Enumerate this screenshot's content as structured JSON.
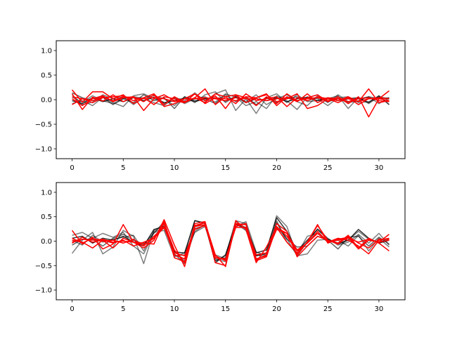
{
  "chart_data": [
    {
      "type": "line",
      "title": "",
      "xlabel": "",
      "ylabel": "",
      "xlim": [
        -1.55,
        32.55
      ],
      "ylim": [
        -1.2,
        1.2
      ],
      "x_ticks": [
        0,
        5,
        10,
        15,
        20,
        25,
        30
      ],
      "x_tick_labels": [
        "0",
        "5",
        "10",
        "15",
        "20",
        "25",
        "30"
      ],
      "y_ticks": [
        -1.0,
        -0.5,
        0.0,
        0.5,
        1.0
      ],
      "y_tick_labels": [
        "−1.0",
        "−0.5",
        "0.0",
        "0.5",
        "1.0"
      ],
      "grid": false,
      "legend": "none",
      "x": [
        0,
        1,
        2,
        3,
        4,
        5,
        6,
        7,
        8,
        9,
        10,
        11,
        12,
        13,
        14,
        15,
        16,
        17,
        18,
        19,
        20,
        21,
        22,
        23,
        24,
        25,
        26,
        27,
        28,
        29,
        30,
        31
      ],
      "series": [
        {
          "color": "#000000",
          "alpha": 0.5,
          "values": [
            -0.08,
            -0.02,
            -0.12,
            0.05,
            -0.06,
            -0.14,
            0.08,
            0.12,
            0.02,
            -0.08,
            0.05,
            -0.02,
            0.14,
            -0.03,
            0.12,
            0.2,
            -0.22,
            0.02,
            -0.28,
            0.04,
            0.12,
            -0.06,
            0.1,
            -0.04,
            -0.02,
            0.02,
            0.08,
            -0.18,
            0.05,
            -0.08,
            0.06,
            0.02
          ]
        },
        {
          "color": "#000000",
          "alpha": 0.5,
          "values": [
            0.05,
            -0.05,
            0.08,
            -0.02,
            -0.08,
            0.02,
            0.06,
            0.03,
            -0.06,
            -0.12,
            0.04,
            -0.08,
            0.02,
            0.06,
            -0.05,
            0.12,
            0.05,
            -0.12,
            -0.04,
            -0.18,
            0.08,
            -0.02,
            -0.2,
            0.06,
            0.02,
            -0.12,
            0.04,
            0.06,
            -0.06,
            -0.04,
            0.05,
            0.01
          ]
        },
        {
          "color": "#000000",
          "alpha": 0.5,
          "values": [
            0.1,
            -0.1,
            -0.05,
            0.1,
            0.02,
            0.06,
            -0.1,
            0.04,
            0.08,
            0.02,
            -0.12,
            0.06,
            -0.06,
            0.1,
            0.16,
            -0.06,
            0.08,
            -0.04,
            0.1,
            -0.1,
            0.02,
            0.1,
            -0.04,
            -0.12,
            0.08,
            -0.06,
            0.1,
            -0.04,
            0.02,
            0.06,
            -0.08,
            0.04
          ]
        },
        {
          "color": "#000000",
          "alpha": 0.8,
          "values": [
            -0.02,
            -0.08,
            0.04,
            -0.04,
            0.02,
            -0.04,
            0.04,
            -0.02,
            0.05,
            -0.06,
            -0.02,
            0.03,
            -0.04,
            0.02,
            0.04,
            -0.03,
            0.06,
            -0.06,
            0.02,
            -0.02,
            0.04,
            -0.04,
            0.02,
            0.05,
            -0.02,
            0.04,
            -0.02,
            0.02,
            0.04,
            -0.06,
            0.08,
            -0.1
          ]
        },
        {
          "color": "#000000",
          "alpha": 0.6,
          "values": [
            0.14,
            0.04,
            -0.02,
            0.05,
            -0.1,
            0.02,
            -0.06,
            0.1,
            -0.02,
            0.04,
            -0.18,
            0.06,
            -0.02,
            0.02,
            -0.08,
            0.1,
            -0.04,
            0.06,
            -0.1,
            0.04,
            -0.06,
            0.02,
            0.06,
            -0.02,
            0.04,
            -0.04,
            0.02,
            -0.06,
            -0.02,
            0.06,
            0.02,
            0.04
          ]
        },
        {
          "color": "#ff0000",
          "alpha": 1.0,
          "values": [
            0.2,
            -0.05,
            0.16,
            0.16,
            0.02,
            0.1,
            -0.08,
            0.04,
            0.12,
            -0.1,
            0.06,
            -0.06,
            0.12,
            -0.02,
            0.08,
            -0.18,
            0.1,
            0.04,
            -0.12,
            0.06,
            -0.08,
            0.12,
            -0.02,
            0.04,
            0.1,
            -0.04,
            0.06,
            -0.08,
            0.06,
            -0.35,
            0.02,
            0.18
          ]
        },
        {
          "color": "#ff0000",
          "alpha": 1.0,
          "values": [
            0.12,
            -0.2,
            0.05,
            -0.03,
            0.1,
            -0.04,
            0.06,
            -0.22,
            0.02,
            0.1,
            -0.02,
            -0.06,
            0.04,
            0.22,
            -0.1,
            0.06,
            0.1,
            -0.06,
            0.04,
            0.1,
            -0.04,
            0.02,
            0.12,
            -0.18,
            -0.12,
            0.02,
            -0.02,
            0.06,
            -0.04,
            0.22,
            -0.06,
            -0.02
          ]
        },
        {
          "color": "#ff0000",
          "alpha": 1.0,
          "values": [
            0.02,
            -0.12,
            0.02,
            0.08,
            -0.04,
            0.04,
            0.06,
            -0.04,
            0.1,
            -0.14,
            -0.08,
            0.02,
            0.12,
            -0.08,
            0.04,
            0.02,
            -0.02,
            0.06,
            0.04,
            0.12,
            -0.12,
            0.06,
            -0.04,
            0.12,
            -0.06,
            0.04,
            0.02,
            -0.04,
            0.02,
            0.04,
            -0.02,
            -0.04
          ]
        },
        {
          "color": "#ff0000",
          "alpha": 1.0,
          "values": [
            -0.1,
            0.02,
            -0.06,
            0.04,
            0.06,
            0.08,
            -0.02,
            0.04,
            -0.1,
            0.06,
            0.02,
            -0.04,
            0.04,
            -0.06,
            0.12,
            0.06,
            -0.08,
            0.12,
            -0.02,
            0.02,
            0.06,
            -0.14,
            0.04,
            -0.02,
            0.06,
            0.02,
            -0.06,
            0.04,
            -0.1,
            0.02,
            0.04,
            0.02
          ]
        },
        {
          "color": "#ff0000",
          "alpha": 1.0,
          "values": [
            0.06,
            0.02,
            -0.02,
            0.06,
            -0.02,
            0.06,
            0.04,
            0.02,
            0.04,
            0.02,
            -0.04,
            0.02,
            0.02,
            0.04,
            0.02,
            -0.02,
            0.04,
            0.02,
            0.02,
            -0.02,
            0.02,
            0.04,
            -0.02,
            0.02,
            0.04,
            -0.02,
            0.02,
            0.02,
            -0.04,
            0.02,
            0.02,
            -0.02
          ]
        }
      ]
    },
    {
      "type": "line",
      "title": "",
      "xlabel": "",
      "ylabel": "",
      "xlim": [
        -1.55,
        32.55
      ],
      "ylim": [
        -1.2,
        1.2
      ],
      "x_ticks": [
        0,
        5,
        10,
        15,
        20,
        25,
        30
      ],
      "x_tick_labels": [
        "0",
        "5",
        "10",
        "15",
        "20",
        "25",
        "30"
      ],
      "y_ticks": [
        -1.0,
        -0.5,
        0.0,
        0.5,
        1.0
      ],
      "y_tick_labels": [
        "−1.0",
        "−0.5",
        "0.0",
        "0.5",
        "1.0"
      ],
      "grid": false,
      "legend": "none",
      "x": [
        0,
        1,
        2,
        3,
        4,
        5,
        6,
        7,
        8,
        9,
        10,
        11,
        12,
        13,
        14,
        15,
        16,
        17,
        18,
        19,
        20,
        21,
        22,
        23,
        24,
        25,
        26,
        27,
        28,
        29,
        30,
        31
      ],
      "series": [
        {
          "color": "#000000",
          "alpha": 0.5,
          "values": [
            -0.25,
            0.02,
            0.18,
            -0.26,
            -0.12,
            0.22,
            0.1,
            -0.46,
            0.22,
            0.32,
            -0.3,
            -0.28,
            0.42,
            0.38,
            -0.4,
            -0.3,
            0.42,
            0.36,
            -0.3,
            -0.24,
            0.52,
            0.3,
            -0.3,
            -0.02,
            0.25,
            0.06,
            -0.08,
            -0.02,
            0.14,
            -0.04,
            0.16,
            -0.08
          ]
        },
        {
          "color": "#000000",
          "alpha": 0.5,
          "values": [
            0.12,
            0.18,
            0.06,
            0.16,
            0.08,
            0.18,
            -0.1,
            -0.26,
            0.18,
            0.22,
            -0.32,
            -0.24,
            0.18,
            0.3,
            -0.28,
            -0.36,
            0.4,
            0.26,
            -0.28,
            -0.32,
            0.3,
            0.05,
            -0.3,
            -0.26,
            0.02,
            0.04,
            -0.04,
            0.02,
            0.2,
            0.04,
            -0.02,
            0.04
          ]
        },
        {
          "color": "#000000",
          "alpha": 0.5,
          "values": [
            0.02,
            -0.08,
            0.12,
            -0.02,
            0.04,
            0.08,
            0.12,
            -0.2,
            0.2,
            0.26,
            -0.2,
            -0.4,
            0.2,
            0.34,
            -0.36,
            -0.42,
            0.3,
            0.4,
            -0.22,
            -0.3,
            0.42,
            -0.02,
            -0.26,
            0.1,
            0.16,
            -0.02,
            0.02,
            -0.1,
            0.12,
            -0.2,
            0.06,
            -0.12
          ]
        },
        {
          "color": "#000000",
          "alpha": 0.8,
          "values": [
            0.06,
            0.1,
            -0.04,
            0.06,
            0.02,
            0.1,
            -0.02,
            -0.1,
            0.24,
            0.3,
            -0.22,
            -0.24,
            0.42,
            0.36,
            -0.44,
            -0.28,
            0.34,
            0.28,
            -0.24,
            -0.18,
            0.48,
            0.2,
            -0.2,
            0.02,
            0.24,
            0.04,
            -0.06,
            0.02,
            0.24,
            0.06,
            -0.04,
            0.02
          ]
        },
        {
          "color": "#000000",
          "alpha": 0.6,
          "values": [
            -0.08,
            0.04,
            0.04,
            -0.1,
            0.06,
            0.14,
            0.02,
            -0.06,
            0.16,
            0.4,
            -0.26,
            -0.46,
            0.26,
            0.32,
            -0.4,
            -0.34,
            0.36,
            0.22,
            -0.3,
            -0.26,
            0.38,
            0.04,
            -0.12,
            -0.1,
            0.1,
            0.02,
            -0.16,
            0.08,
            0.1,
            -0.1,
            0.08,
            -0.06
          ]
        },
        {
          "color": "#ff0000",
          "alpha": 1.0,
          "values": [
            0.22,
            -0.06,
            0.08,
            -0.16,
            -0.06,
            0.34,
            -0.02,
            -0.14,
            0.02,
            0.44,
            -0.08,
            -0.52,
            0.3,
            0.38,
            -0.44,
            -0.5,
            0.42,
            0.24,
            -0.44,
            -0.12,
            0.28,
            -0.02,
            -0.24,
            -0.02,
            0.32,
            0.02,
            -0.04,
            0.12,
            -0.14,
            0.06,
            -0.04,
            -0.2
          ]
        },
        {
          "color": "#ff0000",
          "alpha": 1.0,
          "values": [
            0.02,
            -0.02,
            -0.14,
            0.02,
            -0.14,
            0.06,
            -0.02,
            -0.04,
            -0.06,
            0.4,
            -0.34,
            -0.42,
            0.32,
            0.38,
            -0.28,
            -0.52,
            0.36,
            0.34,
            -0.38,
            -0.28,
            0.28,
            0.16,
            -0.28,
            -0.02,
            0.34,
            -0.04,
            0.04,
            0.08,
            -0.16,
            0.02,
            -0.02,
            0.14
          ]
        },
        {
          "color": "#ff0000",
          "alpha": 1.0,
          "values": [
            -0.04,
            0.08,
            -0.02,
            0.02,
            -0.04,
            0.02,
            -0.1,
            -0.02,
            0.06,
            0.36,
            -0.18,
            -0.44,
            0.36,
            0.4,
            -0.34,
            -0.38,
            0.34,
            0.34,
            -0.36,
            -0.3,
            0.36,
            0.2,
            -0.32,
            -0.1,
            0.1,
            0.02,
            -0.06,
            0.1,
            -0.04,
            -0.14,
            0.04,
            0.04
          ]
        },
        {
          "color": "#ff0000",
          "alpha": 1.0,
          "values": [
            0.06,
            -0.04,
            0.06,
            0.0,
            0.02,
            -0.04,
            0.04,
            -0.1,
            0.1,
            0.3,
            -0.28,
            -0.36,
            0.3,
            0.34,
            -0.3,
            -0.4,
            0.3,
            0.36,
            -0.4,
            -0.32,
            0.3,
            0.1,
            -0.2,
            -0.04,
            0.2,
            -0.02,
            0.06,
            0.02,
            -0.1,
            -0.26,
            0.02,
            0.06
          ]
        },
        {
          "color": "#ff0000",
          "alpha": 1.0,
          "values": [
            -0.02,
            0.04,
            0.02,
            0.04,
            -0.02,
            0.0,
            -0.02,
            -0.08,
            0.06,
            0.28,
            -0.24,
            -0.3,
            0.24,
            0.32,
            -0.34,
            -0.36,
            0.28,
            0.28,
            -0.28,
            -0.24,
            0.24,
            0.16,
            -0.18,
            -0.04,
            0.16,
            0.0,
            0.02,
            0.06,
            -0.02,
            0.04,
            -0.02,
            0.02
          ]
        }
      ]
    }
  ]
}
